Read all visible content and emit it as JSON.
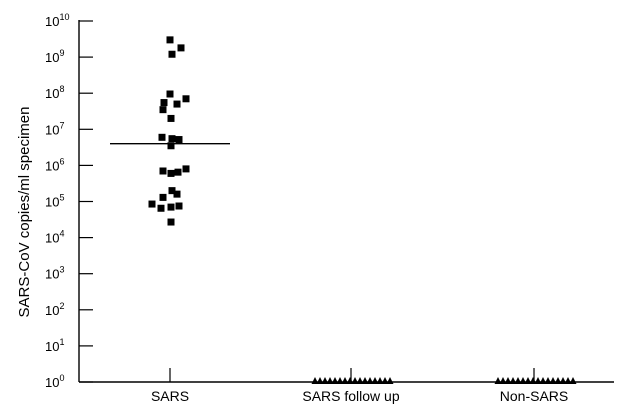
{
  "chart_data": {
    "type": "scatter",
    "title": "",
    "xlabel": "",
    "ylabel": "SARS-CoV copies/ml specimen",
    "yscale": "log10",
    "ylim": [
      1,
      10000000000
    ],
    "y_tick_base": "10",
    "y_tick_exponents": [
      "0",
      "1",
      "2",
      "3",
      "4",
      "5",
      "6",
      "7",
      "8",
      "9",
      "10"
    ],
    "grid": false,
    "categories": [
      "SARS",
      "SARS follow up",
      "Non-SARS"
    ],
    "series": [
      {
        "category": "SARS",
        "marker": "square",
        "median": 4000000,
        "points": [
          {
            "x": 0.0,
            "y": 3000000000
          },
          {
            "x": 0.11,
            "y": 1800000000
          },
          {
            "x": 0.02,
            "y": 1200000000
          },
          {
            "x": -0.06,
            "y": 55000000
          },
          {
            "x": 0.0,
            "y": 95000000
          },
          {
            "x": 0.07,
            "y": 50000000
          },
          {
            "x": 0.16,
            "y": 70000000
          },
          {
            "x": -0.07,
            "y": 35000000
          },
          {
            "x": 0.01,
            "y": 20000000
          },
          {
            "x": -0.08,
            "y": 6000000
          },
          {
            "x": 0.02,
            "y": 5500000
          },
          {
            "x": 0.09,
            "y": 5200000
          },
          {
            "x": 0.01,
            "y": 3500000
          },
          {
            "x": -0.07,
            "y": 700000
          },
          {
            "x": 0.01,
            "y": 600000
          },
          {
            "x": 0.08,
            "y": 650000
          },
          {
            "x": 0.16,
            "y": 800000
          },
          {
            "x": 0.02,
            "y": 200000
          },
          {
            "x": -0.07,
            "y": 130000
          },
          {
            "x": 0.07,
            "y": 160000
          },
          {
            "x": -0.18,
            "y": 85000
          },
          {
            "x": -0.09,
            "y": 65000
          },
          {
            "x": 0.01,
            "y": 70000
          },
          {
            "x": 0.09,
            "y": 75000
          },
          {
            "x": 0.01,
            "y": 27000
          }
        ]
      },
      {
        "category": "SARS follow up",
        "marker": "triangle",
        "points": [
          {
            "x": -0.36,
            "y": 1
          },
          {
            "x": -0.31,
            "y": 1
          },
          {
            "x": -0.26,
            "y": 1
          },
          {
            "x": -0.21,
            "y": 1
          },
          {
            "x": -0.16,
            "y": 1
          },
          {
            "x": -0.11,
            "y": 1
          },
          {
            "x": -0.06,
            "y": 1
          },
          {
            "x": -0.01,
            "y": 1
          },
          {
            "x": 0.04,
            "y": 1
          },
          {
            "x": 0.09,
            "y": 1
          },
          {
            "x": 0.14,
            "y": 1
          },
          {
            "x": 0.19,
            "y": 1
          },
          {
            "x": 0.24,
            "y": 1
          },
          {
            "x": 0.29,
            "y": 1
          },
          {
            "x": 0.34,
            "y": 1
          },
          {
            "x": 0.39,
            "y": 1
          }
        ]
      },
      {
        "category": "Non-SARS",
        "marker": "triangle",
        "points": [
          {
            "x": -0.36,
            "y": 1
          },
          {
            "x": -0.31,
            "y": 1
          },
          {
            "x": -0.26,
            "y": 1
          },
          {
            "x": -0.21,
            "y": 1
          },
          {
            "x": -0.16,
            "y": 1
          },
          {
            "x": -0.11,
            "y": 1
          },
          {
            "x": -0.06,
            "y": 1
          },
          {
            "x": -0.01,
            "y": 1
          },
          {
            "x": 0.04,
            "y": 1
          },
          {
            "x": 0.09,
            "y": 1
          },
          {
            "x": 0.14,
            "y": 1
          },
          {
            "x": 0.19,
            "y": 1
          },
          {
            "x": 0.24,
            "y": 1
          },
          {
            "x": 0.29,
            "y": 1
          },
          {
            "x": 0.34,
            "y": 1
          },
          {
            "x": 0.39,
            "y": 1
          }
        ]
      }
    ]
  }
}
